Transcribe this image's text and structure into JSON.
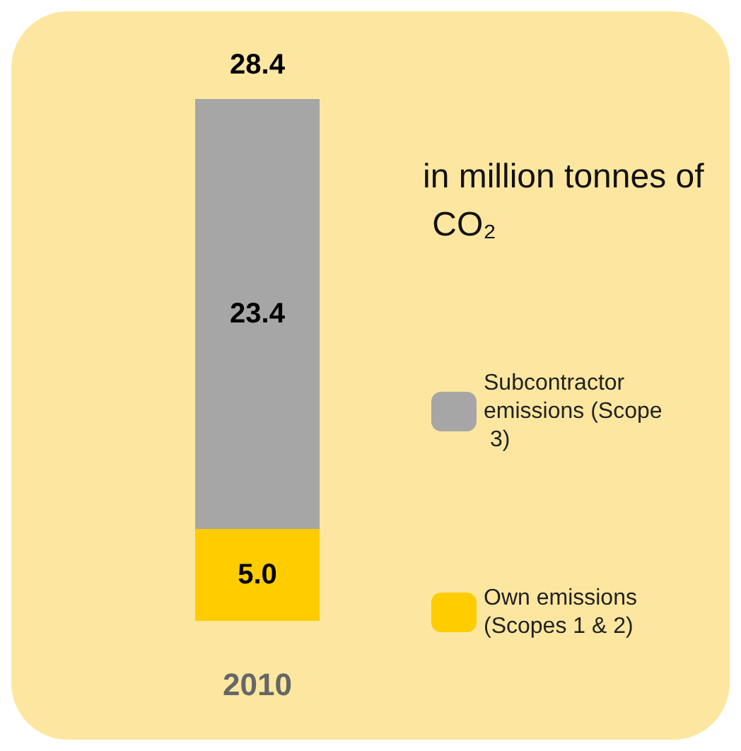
{
  "chart_data": {
    "type": "bar",
    "title": "in million tonnes of CO₂",
    "stacked": true,
    "categories": [
      "2010"
    ],
    "series": [
      {
        "name": "Own emissions (Scopes 1 & 2)",
        "color": "#ffcc00",
        "values": [
          5.0
        ],
        "value_labels": [
          "5.0"
        ]
      },
      {
        "name": "Subcontractor emissions (Scope 3)",
        "color": "#a6a6a6",
        "values": [
          23.4
        ],
        "value_labels": [
          "23.4"
        ]
      }
    ],
    "totals": [
      "28.4"
    ],
    "legend": "right",
    "grid": false
  }
}
